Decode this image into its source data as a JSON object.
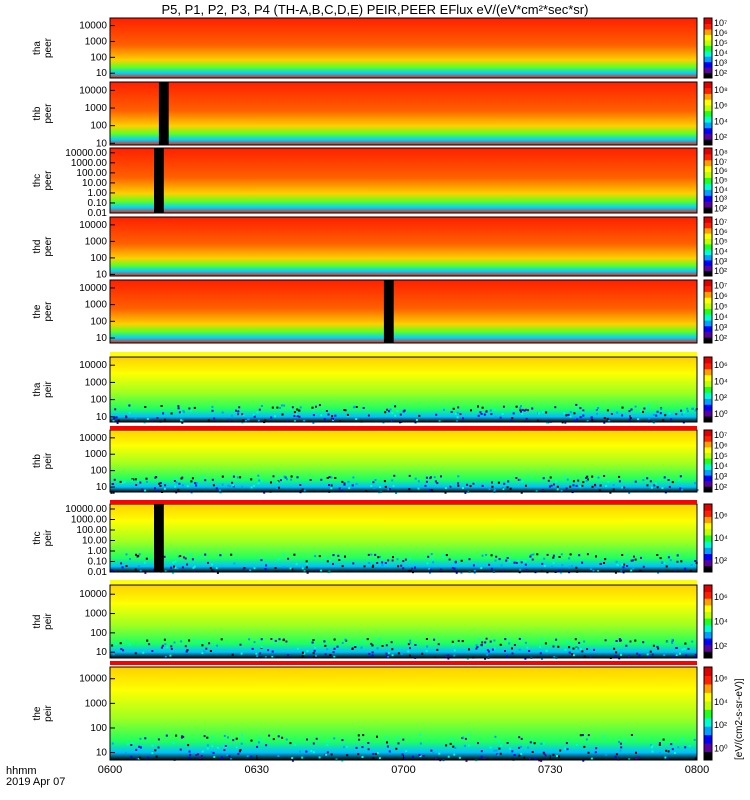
{
  "title": "P5, P1, P2, P3, P4 (TH-A,B,C,D,E) PEIR,PEER EFlux eV/(eV*cm²*sec*sr)",
  "colorbar_unit_label": "[eV/(cm2-s-sr-eV)]",
  "footer": {
    "line1": "hhmm",
    "line2": "2019 Apr 07"
  },
  "chart_data": {
    "type": "heatmap",
    "title": "P5, P1, P2, P3, P4 (TH-A,B,C,D,E) PEIR,PEER EFlux eV/(eV*cm²*sec*sr)",
    "x": {
      "start": "06:00",
      "end": "08:00",
      "ticks": [
        "0600",
        "0630",
        "0700",
        "0730",
        "0800"
      ]
    },
    "panels": [
      {
        "probe": "tha",
        "species": "peer",
        "ylabel": [
          "tha",
          "peer"
        ],
        "yrange": [
          5,
          30000
        ],
        "yticks": [
          "10",
          "100",
          "1000",
          "10000"
        ],
        "cbar_range": [
          1,
          10000000
        ],
        "cbar_ticks": [
          "10²",
          "10³",
          "10⁴",
          "10⁵",
          "10⁶",
          "10⁷"
        ],
        "gap": null
      },
      {
        "probe": "thb",
        "species": "peer",
        "ylabel": [
          "thb",
          "peer"
        ],
        "yrange": [
          8,
          30000
        ],
        "yticks": [
          "10",
          "100",
          "1000",
          "10000"
        ],
        "cbar_range": [
          1,
          100000000
        ],
        "cbar_ticks": [
          "10²",
          "10⁴",
          "10⁶",
          "10⁸"
        ],
        "gap": [
          "06:10",
          "06:12"
        ]
      },
      {
        "probe": "thc",
        "species": "peer",
        "ylabel": [
          "thc",
          "peer"
        ],
        "yrange": [
          0.01,
          30000
        ],
        "yticks": [
          "0.01",
          "0.10",
          "1.00",
          "10.00",
          "100.00",
          "1000.00",
          "10000.00"
        ],
        "cbar_range": [
          1,
          100000000
        ],
        "cbar_ticks": [
          "10²",
          "10³",
          "10⁴",
          "10⁵",
          "10⁶",
          "10⁷",
          "10⁸"
        ],
        "gap": [
          "06:09",
          "06:11"
        ]
      },
      {
        "probe": "thd",
        "species": "peer",
        "ylabel": [
          "thd",
          "peer"
        ],
        "yrange": [
          8,
          30000
        ],
        "yticks": [
          "10",
          "100",
          "1000",
          "10000"
        ],
        "cbar_range": [
          1,
          10000000
        ],
        "cbar_ticks": [
          "10²",
          "10³",
          "10⁴",
          "10⁵",
          "10⁶",
          "10⁷"
        ],
        "gap": null
      },
      {
        "probe": "the",
        "species": "peer",
        "ylabel": [
          "the",
          "peer"
        ],
        "yrange": [
          5,
          30000
        ],
        "yticks": [
          "10",
          "100",
          "1000",
          "10000"
        ],
        "cbar_range": [
          1,
          10000000
        ],
        "cbar_ticks": [
          "10²",
          "10³",
          "10⁴",
          "10⁵",
          "10⁶",
          "10⁷"
        ],
        "gap": [
          "06:56",
          "06:58"
        ]
      },
      {
        "probe": "tha",
        "species": "peir",
        "ylabel": [
          "tha",
          "peir"
        ],
        "yrange": [
          5,
          30000
        ],
        "yticks": [
          "10",
          "100",
          "1000",
          "10000"
        ],
        "cbar_range": [
          1,
          1000000
        ],
        "cbar_ticks": [
          "10⁰",
          "10²",
          "10⁴",
          "10⁶"
        ],
        "gap": null
      },
      {
        "probe": "thb",
        "species": "peir",
        "ylabel": [
          "thb",
          "peir"
        ],
        "yrange": [
          5,
          30000
        ],
        "yticks": [
          "10",
          "100",
          "1000",
          "10000"
        ],
        "cbar_range": [
          1,
          10000000
        ],
        "cbar_ticks": [
          "10²",
          "10³",
          "10⁴",
          "10⁵",
          "10⁶",
          "10⁷"
        ],
        "gap": null
      },
      {
        "probe": "thc",
        "species": "peir",
        "ylabel": [
          "thc",
          "peir"
        ],
        "yrange": [
          0.01,
          30000
        ],
        "yticks": [
          "0.01",
          "0.10",
          "1.00",
          "10.00",
          "100.00",
          "1000.00",
          "10000.00"
        ],
        "cbar_range": [
          1,
          10000000
        ],
        "cbar_ticks": [
          "10²",
          "10⁴",
          "10⁶"
        ],
        "gap": [
          "06:09",
          "06:11"
        ]
      },
      {
        "probe": "thd",
        "species": "peir",
        "ylabel": [
          "thd",
          "peir"
        ],
        "yrange": [
          5,
          30000
        ],
        "yticks": [
          "10",
          "100",
          "1000",
          "10000"
        ],
        "cbar_range": [
          1,
          10000000
        ],
        "cbar_ticks": [
          "10²",
          "10⁴",
          "10⁶"
        ],
        "gap": null
      },
      {
        "probe": "the",
        "species": "peir",
        "ylabel": [
          "the",
          "peir"
        ],
        "yrange": [
          5,
          30000
        ],
        "yticks": [
          "10",
          "100",
          "1000",
          "10000"
        ],
        "cbar_range": [
          1,
          10000000
        ],
        "cbar_ticks": [
          "10⁰",
          "10²",
          "10⁴",
          "10⁶"
        ],
        "gap": null
      }
    ],
    "colormap": [
      "#000000",
      "#5a00a0",
      "#0000ff",
      "#00a0ff",
      "#00ffd0",
      "#20ff20",
      "#c0ff00",
      "#ffff00",
      "#ffa000",
      "#ff2000",
      "#e00000"
    ],
    "flag_bar_colors": [
      "#ff0000",
      "#ffff00"
    ]
  }
}
